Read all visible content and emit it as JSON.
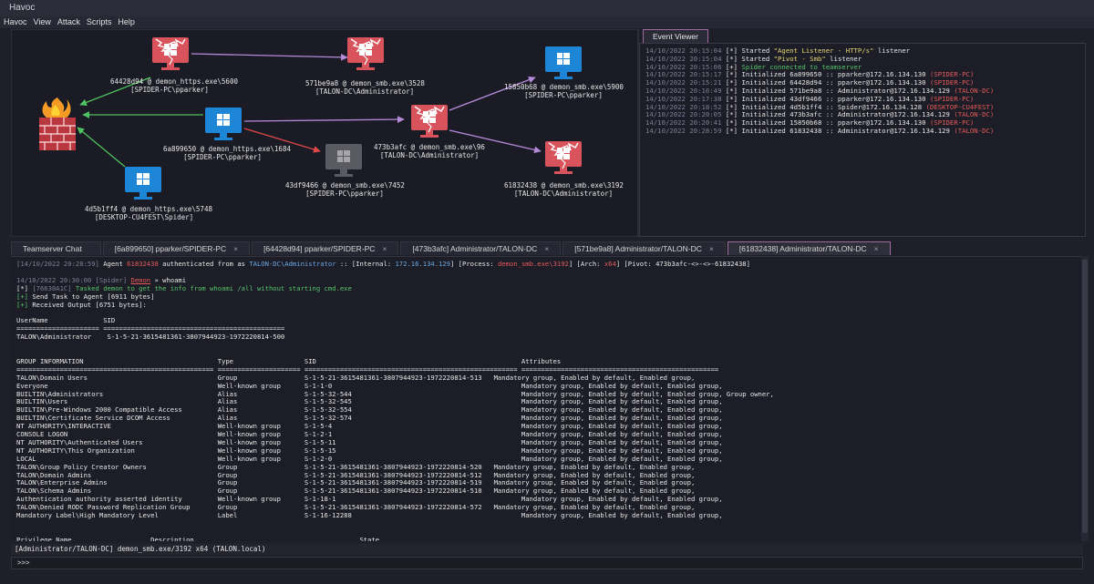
{
  "window": {
    "title": "Havoc"
  },
  "menu": [
    "Havoc",
    "View",
    "Attack",
    "Scripts",
    "Help"
  ],
  "graph": {
    "nodes": [
      {
        "id": "firewall",
        "label1": "",
        "label2": "",
        "kind": "firewall"
      },
      {
        "id": "n1",
        "label1": "64428d94 @ demon_https.exe\\5600",
        "label2": "[SPIDER-PC\\pparker]",
        "kind": "compromised"
      },
      {
        "id": "n2",
        "label1": "571be9a8 @ demon_smb.exe\\3528",
        "label2": "[TALON-DC\\Administrator]",
        "kind": "compromised"
      },
      {
        "id": "n3",
        "label1": "15850b68 @ demon_smb.exe\\5900",
        "label2": "[SPIDER-PC\\pparker]",
        "kind": "windows"
      },
      {
        "id": "n4",
        "label1": "6a899650 @ demon_https.exe\\1684",
        "label2": "[SPIDER-PC\\pparker]",
        "kind": "windows"
      },
      {
        "id": "n5",
        "label1": "473b3afc @ demon_smb.exe\\96",
        "label2": "[TALON-DC\\Administrator]",
        "kind": "compromised"
      },
      {
        "id": "n6",
        "label1": "43df9466 @ demon_smb.exe\\7452",
        "label2": "[SPIDER-PC\\pparker]",
        "kind": "dead"
      },
      {
        "id": "n7",
        "label1": "61832438 @ demon_smb.exe\\3192",
        "label2": "[TALON-DC\\Administrator]",
        "kind": "compromised"
      },
      {
        "id": "n8",
        "label1": "4d5b1ff4 @ demon_https.exe\\5748",
        "label2": "[DESKTOP-CU4FEST\\Spider]",
        "kind": "windows"
      }
    ]
  },
  "event_viewer": {
    "tab": "Event Viewer",
    "lines": [
      {
        "ts": "14/10/2022 20:15:04",
        "mark": "[*]",
        "text": "Started ",
        "q": "\"Agent Listener - HTTP/s\"",
        "tail": " listener",
        "host": ""
      },
      {
        "ts": "14/10/2022 20:15:04",
        "mark": "[*]",
        "text": "Started ",
        "q": "\"Pivot - Smb\"",
        "tail": " listener",
        "host": ""
      },
      {
        "ts": "14/10/2022 20:15:06",
        "mark": "[+]",
        "text": "",
        "q": "",
        "tail": "Spider connected to teamserver",
        "host": ""
      },
      {
        "ts": "14/10/2022 20:15:17",
        "mark": "[*]",
        "text": "Initialized 6a899650 :: pparker@172.16.134.130 ",
        "q": "",
        "tail": "",
        "host": "(SPIDER-PC)"
      },
      {
        "ts": "14/10/2022 20:15:21",
        "mark": "[*]",
        "text": "Initialized 64428d94 :: pparker@172.16.134.130 ",
        "q": "",
        "tail": "",
        "host": "(SPIDER-PC)"
      },
      {
        "ts": "14/10/2022 20:16:49",
        "mark": "[*]",
        "text": "Initialized 571be9a8 :: Administrator@172.16.134.129 ",
        "q": "",
        "tail": "",
        "host": "(TALON-DC)"
      },
      {
        "ts": "14/10/2022 20:17:38",
        "mark": "[*]",
        "text": "Initialized 43df9466 :: pparker@172.16.134.130 ",
        "q": "",
        "tail": "",
        "host": "(SPIDER-PC)"
      },
      {
        "ts": "14/10/2022 20:18:52",
        "mark": "[*]",
        "text": "Initialized 4d5b1ff4 :: Spider@172.16.134.128 ",
        "q": "",
        "tail": "",
        "host": "(DESKTOP-CU4FEST)"
      },
      {
        "ts": "14/10/2022 20:20:05",
        "mark": "[*]",
        "text": "Initialized 473b3afc :: Administrator@172.16.134.129 ",
        "q": "",
        "tail": "",
        "host": "(TALON-DC)"
      },
      {
        "ts": "14/10/2022 20:20:41",
        "mark": "[*]",
        "text": "Initialized 15850b68 :: pparker@172.16.134.130 ",
        "q": "",
        "tail": "",
        "host": "(SPIDER-PC)"
      },
      {
        "ts": "14/10/2022 20:28:59",
        "mark": "[*]",
        "text": "Initialized 61832438 :: Administrator@172.16.134.129 ",
        "q": "",
        "tail": "",
        "host": "(TALON-DC)"
      }
    ]
  },
  "tabs": [
    {
      "label": "Teamserver Chat",
      "close": ""
    },
    {
      "label": "[6a899650] pparker/SPIDER-PC",
      "close": "×"
    },
    {
      "label": "[64428d94] pparker/SPIDER-PC",
      "close": "×"
    },
    {
      "label": "[473b3afc] Administrator/TALON-DC",
      "close": "×"
    },
    {
      "label": "[571be9a8] Administrator/TALON-DC",
      "close": "×"
    },
    {
      "label": "[61832438] Administrator/TALON-DC",
      "close": "×"
    }
  ],
  "console": {
    "header": {
      "ts": "[14/10/2022 20:28:59]",
      "a": " Agent ",
      "agent": "61832438",
      "b": " authenticated from as ",
      "user": "TALON-DC\\Administrator",
      "c": " :: [Internal: ",
      "ip": "172.16.134.129",
      "d": "] [Process: ",
      "proc": "demon_smb.exe\\3192",
      "e": "] [Arch: ",
      "arch": "x64",
      "f": "] [Pivot: 473b3afc-<>-<>-61832438]"
    },
    "cmd_ts": "14/10/2022 20:30:00 [Spider] ",
    "cmd_demon": "Demon",
    "cmd_text": " » whoami",
    "task_id": "[76630A1C]",
    "task_text": " Tasked demon to get the info from whoami /all without starting cmd.exe",
    "send": "Send Task to Agent [6911 bytes]",
    "recv": "Received Output [6751 bytes]:",
    "body": [
      "",
      "UserName              SID",
      "===================== ==============================================",
      "TALON\\Administrator    S-1-5-21-3615481361-3807944923-1972220814-500",
      "",
      "",
      "GROUP INFORMATION                                  Type                  SID                                                    Attributes",
      "================================================== ===================== ====================================================== ==================================================",
      "TALON\\Domain Users                                 Group                 S-1-5-21-3615481361-3807944923-1972220814-513   Mandatory group, Enabled by default, Enabled group,",
      "Everyone                                           Well-known group      S-1-1-0                                                Mandatory group, Enabled by default, Enabled group,",
      "BUILTIN\\Administrators                             Alias                 S-1-5-32-544                                           Mandatory group, Enabled by default, Enabled group, Group owner,",
      "BUILTIN\\Users                                      Alias                 S-1-5-32-545                                           Mandatory group, Enabled by default, Enabled group,",
      "BUILTIN\\Pre-Windows 2000 Compatible Access         Alias                 S-1-5-32-554                                           Mandatory group, Enabled by default, Enabled group,",
      "BUILTIN\\Certificate Service DCOM Access            Alias                 S-1-5-32-574                                           Mandatory group, Enabled by default, Enabled group,",
      "NT AUTHORITY\\INTERACTIVE                           Well-known group      S-1-5-4                                                Mandatory group, Enabled by default, Enabled group,",
      "CONSOLE LOGON                                      Well-known group      S-1-2-1                                                Mandatory group, Enabled by default, Enabled group,",
      "NT AUTHORITY\\Authenticated Users                   Well-known group      S-1-5-11                                               Mandatory group, Enabled by default, Enabled group,",
      "NT AUTHORITY\\This Organization                     Well-known group      S-1-5-15                                               Mandatory group, Enabled by default, Enabled group,",
      "LOCAL                                              Well-known group      S-1-2-0                                                Mandatory group, Enabled by default, Enabled group,",
      "TALON\\Group Policy Creator Owners                  Group                 S-1-5-21-3615481361-3807944923-1972220814-520   Mandatory group, Enabled by default, Enabled group,",
      "TALON\\Domain Admins                                Group                 S-1-5-21-3615481361-3807944923-1972220814-512   Mandatory group, Enabled by default, Enabled group,",
      "TALON\\Enterprise Admins                            Group                 S-1-5-21-3615481361-3807944923-1972220814-519   Mandatory group, Enabled by default, Enabled group,",
      "TALON\\Schema Admins                                Group                 S-1-5-21-3615481361-3807944923-1972220814-518   Mandatory group, Enabled by default, Enabled group,",
      "Authentication authority asserted identity         Well-known group      S-1-18-1                                               Mandatory group, Enabled by default, Enabled group,",
      "TALON\\Denied RODC Password Replication Group       Group                 S-1-5-21-3615481361-3807944923-1972220814-572   Mandatory group, Enabled by default, Enabled group,",
      "Mandatory Label\\High Mandatory Level               Label                 S-1-16-12288                                           Mandatory group, Enabled by default, Enabled group,",
      "",
      "",
      "Privilege Name                    Description                                          State"
    ]
  },
  "status": "[Administrator/TALON-DC] demon_smb.exe/3192 x64 (TALON.local)",
  "prompt": ">>>",
  "colors": {
    "accent": "#a06a9e",
    "link_green": "#4fc35f",
    "link_purple": "#b48ad8",
    "link_red": "#e04848",
    "node_red": "#d9535c",
    "node_blue": "#1d86d6"
  }
}
